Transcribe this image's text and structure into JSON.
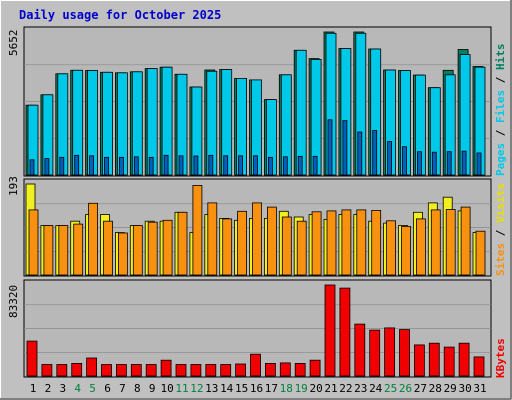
{
  "title": "Daily usage for October 2025",
  "colors": {
    "background": "#c0c0c0",
    "panel": "#b8b8b8",
    "title": "#0000cc",
    "pages": "#00a8c8",
    "files": "#00c8e8",
    "hits": "#008060",
    "sites": "#f89010",
    "visits": "#f0f020",
    "kbytes": "#f00000",
    "weekend_label": "#008040"
  },
  "chart_data": [
    {
      "type": "bar",
      "name": "hits_files_pages",
      "ymax_label": "5652",
      "ylim": [
        0,
        5652
      ],
      "legend": [
        "Pages",
        "Files",
        "Hits"
      ],
      "categories": [
        "1",
        "2",
        "3",
        "4",
        "5",
        "6",
        "7",
        "8",
        "9",
        "10",
        "11",
        "12",
        "13",
        "14",
        "15",
        "16",
        "17",
        "18",
        "19",
        "20",
        "21",
        "22",
        "23",
        "24",
        "25",
        "26",
        "27",
        "28",
        "29",
        "30",
        "31"
      ],
      "series": [
        {
          "name": "Hits",
          "values": [
            2760,
            3170,
            4000,
            4140,
            4130,
            4060,
            4040,
            4080,
            4210,
            4260,
            3980,
            3480,
            4150,
            4170,
            3820,
            3760,
            2980,
            3960,
            4930,
            4600,
            5652,
            5000,
            5652,
            4980,
            4150,
            4130,
            3950,
            3450,
            4140,
            4960,
            4290
          ]
        },
        {
          "name": "Files",
          "values": [
            2760,
            3170,
            4000,
            4140,
            4130,
            4060,
            4040,
            4080,
            4210,
            4260,
            3980,
            3480,
            4100,
            4170,
            3820,
            3760,
            2980,
            3960,
            4930,
            4570,
            5600,
            5000,
            5600,
            4980,
            4150,
            4130,
            3950,
            3450,
            3960,
            4760,
            4260
          ]
        },
        {
          "name": "Pages",
          "values": [
            600,
            650,
            700,
            780,
            760,
            700,
            700,
            720,
            700,
            780,
            760,
            750,
            780,
            760,
            760,
            760,
            700,
            720,
            740,
            740,
            2180,
            2150,
            1700,
            1760,
            1320,
            1120,
            920,
            900,
            920,
            940,
            870
          ]
        }
      ]
    },
    {
      "type": "bar",
      "name": "visits_sites",
      "ymax_label": "193",
      "ylim": [
        0,
        193
      ],
      "legend": [
        "Sites",
        "Visits"
      ],
      "categories": [
        "1",
        "2",
        "3",
        "4",
        "5",
        "6",
        "7",
        "8",
        "9",
        "10",
        "11",
        "12",
        "13",
        "14",
        "15",
        "16",
        "17",
        "18",
        "19",
        "20",
        "21",
        "22",
        "23",
        "24",
        "25",
        "26",
        "27",
        "28",
        "29",
        "30",
        "31"
      ],
      "series": [
        {
          "name": "Visits",
          "values": [
            193,
            105,
            105,
            114,
            128,
            128,
            90,
            105,
            114,
            114,
            133,
            90,
            128,
            120,
            116,
            120,
            120,
            135,
            123,
            128,
            118,
            128,
            128,
            114,
            110,
            105,
            133,
            153,
            165,
            136,
            90
          ]
        },
        {
          "name": "Sites",
          "values": [
            138,
            105,
            105,
            108,
            152,
            114,
            89,
            105,
            112,
            116,
            133,
            190,
            153,
            119,
            135,
            153,
            144,
            123,
            114,
            134,
            136,
            138,
            138,
            137,
            115,
            103,
            119,
            138,
            139,
            144,
            93
          ]
        }
      ]
    },
    {
      "type": "bar",
      "name": "kbytes",
      "ymax_label": "83320",
      "ylim": [
        0,
        83320
      ],
      "legend": [
        "KBytes"
      ],
      "categories": [
        "1",
        "2",
        "3",
        "4",
        "5",
        "6",
        "7",
        "8",
        "9",
        "10",
        "11",
        "12",
        "13",
        "14",
        "15",
        "16",
        "17",
        "18",
        "19",
        "20",
        "21",
        "22",
        "23",
        "24",
        "25",
        "26",
        "27",
        "28",
        "29",
        "30",
        "31"
      ],
      "series": [
        {
          "name": "KBytes",
          "values": [
            32000,
            10500,
            10500,
            11500,
            16500,
            10500,
            10500,
            10500,
            10500,
            14500,
            10500,
            10500,
            10500,
            10500,
            11000,
            20000,
            11500,
            12000,
            11500,
            14500,
            83320,
            80500,
            47500,
            42000,
            44000,
            42500,
            28500,
            30000,
            26500,
            30000,
            17500
          ]
        }
      ]
    }
  ],
  "weekend_days": [
    4,
    5,
    11,
    12,
    18,
    19,
    25,
    26
  ]
}
